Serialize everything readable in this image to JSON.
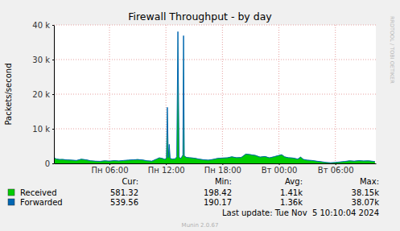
{
  "chart_data": {
    "type": "area",
    "title": "Firewall Throughput - by day",
    "y_label": "Packets/second",
    "x": [
      0.1,
      0.3,
      0.7,
      1.0,
      1.5,
      2.0,
      2.5,
      3.0,
      3.5,
      4.0,
      4.5,
      5.0,
      5.5,
      6.0,
      6.5,
      7.0,
      7.5,
      8.0,
      8.5,
      9.0,
      9.5,
      10.0,
      10.5,
      11.0,
      11.3,
      11.6,
      11.9,
      12.05,
      12.15,
      12.25,
      12.35,
      12.45,
      12.7,
      13.0,
      13.15,
      13.27,
      13.4,
      13.6,
      13.8,
      13.87,
      13.95,
      14.2,
      14.5,
      15.0,
      15.5,
      16.0,
      16.5,
      17.0,
      17.5,
      18.0,
      18.5,
      19.0,
      19.5,
      20.0,
      20.5,
      21.0,
      21.5,
      22.0,
      22.5,
      23.0,
      23.5,
      24.0,
      24.3,
      24.6,
      25.0,
      25.5,
      26.0,
      26.3,
      26.6,
      27.0,
      27.5,
      28.0,
      28.5,
      29.0,
      29.5,
      30.0,
      30.5,
      31.0,
      31.5,
      32.0,
      32.5,
      33.0,
      33.5,
      34.0,
      34.2
    ],
    "series": [
      {
        "name": "Received",
        "color": "#00cc00",
        "type": "area",
        "values": [
          1900,
          1400,
          1200,
          1250,
          1100,
          1000,
          900,
          1300,
          1100,
          800,
          700,
          650,
          800,
          700,
          850,
          750,
          900,
          1000,
          1100,
          1200,
          1050,
          800,
          700,
          1300,
          1700,
          1500,
          1200,
          1600,
          16300,
          1800,
          5600,
          1500,
          1300,
          1400,
          2000,
          38150,
          1800,
          1500,
          2500,
          37000,
          2200,
          1800,
          1700,
          1600,
          1300,
          1100,
          1000,
          1200,
          1500,
          1600,
          1700,
          2000,
          1700,
          1800,
          2800,
          2600,
          2400,
          1900,
          2100,
          1700,
          2000,
          2400,
          2600,
          2000,
          1700,
          1600,
          1300,
          1900,
          1200,
          1000,
          900,
          700,
          500,
          300,
          198.42,
          300,
          450,
          600,
          800,
          700,
          850,
          750,
          800,
          650,
          581.32
        ],
        "stats": [
          "581.32",
          "198.42",
          "1.41k",
          "38.15k"
        ]
      },
      {
        "name": "Forwarded",
        "color": "#0066b3",
        "type": "line",
        "values": [
          1800,
          1300,
          1100,
          1150,
          1000,
          950,
          850,
          1200,
          1050,
          750,
          650,
          600,
          750,
          650,
          800,
          700,
          850,
          950,
          1050,
          1100,
          1000,
          750,
          650,
          1250,
          1600,
          1450,
          1150,
          1500,
          16200,
          1700,
          5500,
          1400,
          1250,
          1350,
          1900,
          38070,
          1700,
          1450,
          2400,
          36900,
          2100,
          1700,
          1650,
          1500,
          1250,
          1050,
          950,
          1150,
          1450,
          1550,
          1600,
          1900,
          1650,
          1700,
          2700,
          2500,
          2300,
          1800,
          2000,
          1600,
          1950,
          2300,
          2500,
          1900,
          1650,
          1550,
          1250,
          1800,
          1150,
          950,
          850,
          650,
          480,
          290,
          190.17,
          280,
          420,
          560,
          750,
          650,
          800,
          700,
          750,
          600,
          539.56
        ],
        "stats": [
          "539.56",
          "190.17",
          "1.36k",
          "38.07k"
        ]
      }
    ],
    "stats_headers": [
      "Cur:",
      "Min:",
      "Avg:",
      "Max:"
    ],
    "xlim": [
      0.1,
      34.3
    ],
    "ylim": [
      0,
      40000
    ],
    "xticks": [
      {
        "value": 6,
        "label": "Пн 06:00"
      },
      {
        "value": 12,
        "label": "Пн 12:00"
      },
      {
        "value": 18,
        "label": "Пн 18:00"
      },
      {
        "value": 24,
        "label": "Вт 00:00"
      },
      {
        "value": 30,
        "label": "Вт 06:00"
      }
    ],
    "yticks": [
      0,
      {
        "value": 10000,
        "label": "10 k"
      },
      {
        "value": 20000,
        "label": "20 k"
      },
      {
        "value": 30000,
        "label": "30 k"
      },
      {
        "value": 40000,
        "label": "40 k"
      }
    ],
    "grid": true,
    "legend": "bottom",
    "footer": "Last update: Tue Nov  5 10:10:04 2024",
    "credit": "Munin 2.0.67",
    "watermark": "RRDTOOL / TOBI OETIKER"
  }
}
